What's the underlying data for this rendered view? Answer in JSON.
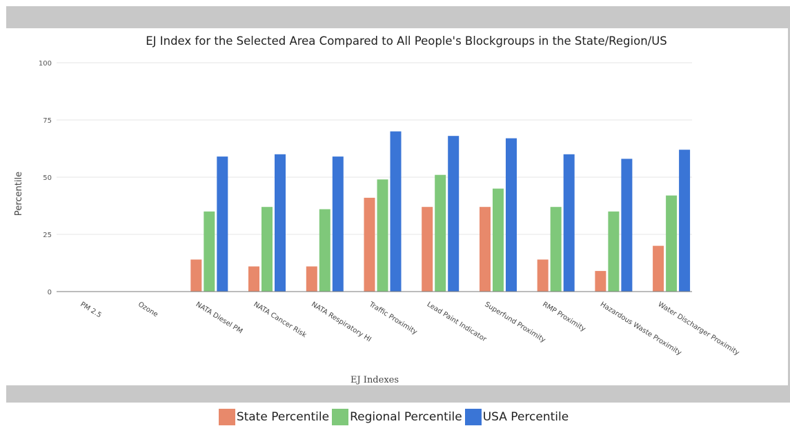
{
  "chart_data": {
    "type": "bar",
    "title": "EJ Index for the Selected Area Compared to All People's Blockgroups in the State/Region/US",
    "xlabel": "EJ Indexes",
    "ylabel": "Percentile",
    "ylim": [
      0,
      100
    ],
    "yticks": [
      0,
      25,
      50,
      75,
      100
    ],
    "categories": [
      "PM 2.5",
      "Ozone",
      "NATA Diesel PM",
      "NATA Cancer Risk",
      "NATA Respiratory HI",
      "Traffic Proximity",
      "Lead Paint Indicator",
      "Superfund Proximity",
      "RMP Proximity",
      "Hazardous Waste Proximity",
      "Water Discharger Proximity"
    ],
    "series": [
      {
        "name": "State Percentile",
        "color": "#e8896b",
        "values": [
          null,
          null,
          14,
          11,
          11,
          41,
          37,
          37,
          14,
          9,
          20
        ]
      },
      {
        "name": "Regional Percentile",
        "color": "#7fc87a",
        "values": [
          null,
          null,
          35,
          37,
          36,
          49,
          51,
          45,
          37,
          35,
          42
        ]
      },
      {
        "name": "USA Percentile",
        "color": "#3a75d6",
        "values": [
          null,
          null,
          59,
          60,
          59,
          70,
          68,
          67,
          60,
          58,
          62
        ]
      }
    ],
    "legend_position": "bottom",
    "grid": true
  }
}
